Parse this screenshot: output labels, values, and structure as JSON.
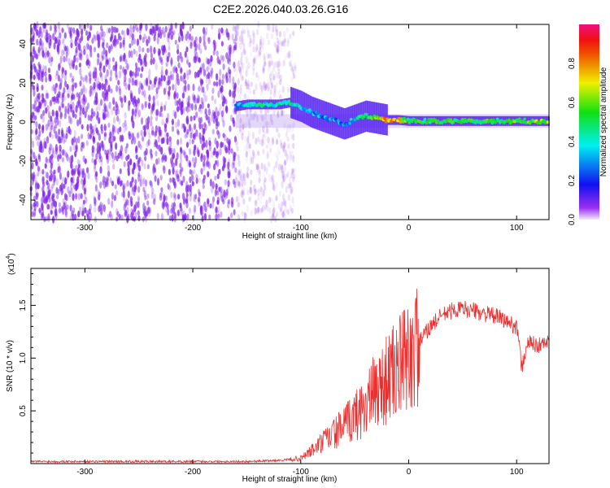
{
  "chart_data": [
    {
      "type": "heatmap",
      "title": "C2E2.2026.040.03.26.G16",
      "xlabel": "Height of straight line (km)",
      "ylabel": "Frequency (Hz)",
      "xlim": [
        -350,
        130
      ],
      "ylim": [
        -50,
        50
      ],
      "xticks": [
        -300,
        -200,
        -100,
        0,
        100
      ],
      "yticks": [
        -40,
        -20,
        0,
        20,
        40
      ],
      "colorbar": {
        "label": "Normalized spectral amplitude",
        "range": [
          0,
          1
        ],
        "ticks": [
          "0.0",
          "0.2",
          "0.4",
          "0.6",
          "0.8"
        ]
      },
      "noise_region_km": [
        -350,
        -115
      ],
      "ridge": {
        "x": [
          -160,
          -150,
          -140,
          -130,
          -120,
          -110,
          -100,
          -90,
          -80,
          -70,
          -60,
          -50,
          -40,
          -30,
          -20,
          -10,
          0,
          20,
          40,
          60,
          80,
          100,
          130
        ],
        "freq_hz": [
          8,
          9,
          9,
          9,
          9,
          10,
          8,
          5,
          3,
          1,
          -1,
          1,
          3,
          2,
          1,
          1,
          0.5,
          0.5,
          0.5,
          0.5,
          0.5,
          0.5,
          0.5
        ],
        "amplitude": [
          0.3,
          0.35,
          0.4,
          0.4,
          0.45,
          0.4,
          0.35,
          0.3,
          0.3,
          0.3,
          0.3,
          0.35,
          0.5,
          0.6,
          0.8,
          0.75,
          0.5,
          0.5,
          0.5,
          0.55,
          0.5,
          0.55,
          0.6
        ]
      }
    },
    {
      "type": "line",
      "xlabel": "Height of straight line (km)",
      "ylabel": "SNR (10 * v/v)",
      "yscale_label": "(x10",
      "yscale_exp": "4",
      "xlim": [
        -350,
        130
      ],
      "ylim": [
        0,
        1.85
      ],
      "xticks": [
        -300,
        -200,
        -100,
        0,
        100
      ],
      "yticks": [
        "0.5",
        "1.0",
        "1.5"
      ],
      "color": "#e83030",
      "x": [
        -350,
        -300,
        -250,
        -200,
        -150,
        -120,
        -100,
        -90,
        -80,
        -70,
        -60,
        -50,
        -40,
        -30,
        -20,
        -10,
        0,
        10,
        20,
        30,
        40,
        50,
        60,
        70,
        80,
        90,
        100,
        105,
        110,
        120,
        130
      ],
      "values": [
        0.02,
        0.02,
        0.02,
        0.02,
        0.02,
        0.03,
        0.05,
        0.12,
        0.2,
        0.28,
        0.35,
        0.45,
        0.55,
        0.7,
        0.8,
        0.9,
        1.0,
        1.15,
        1.3,
        1.4,
        1.45,
        1.47,
        1.45,
        1.42,
        1.4,
        1.35,
        1.3,
        0.9,
        1.15,
        1.12,
        1.15
      ]
    }
  ]
}
